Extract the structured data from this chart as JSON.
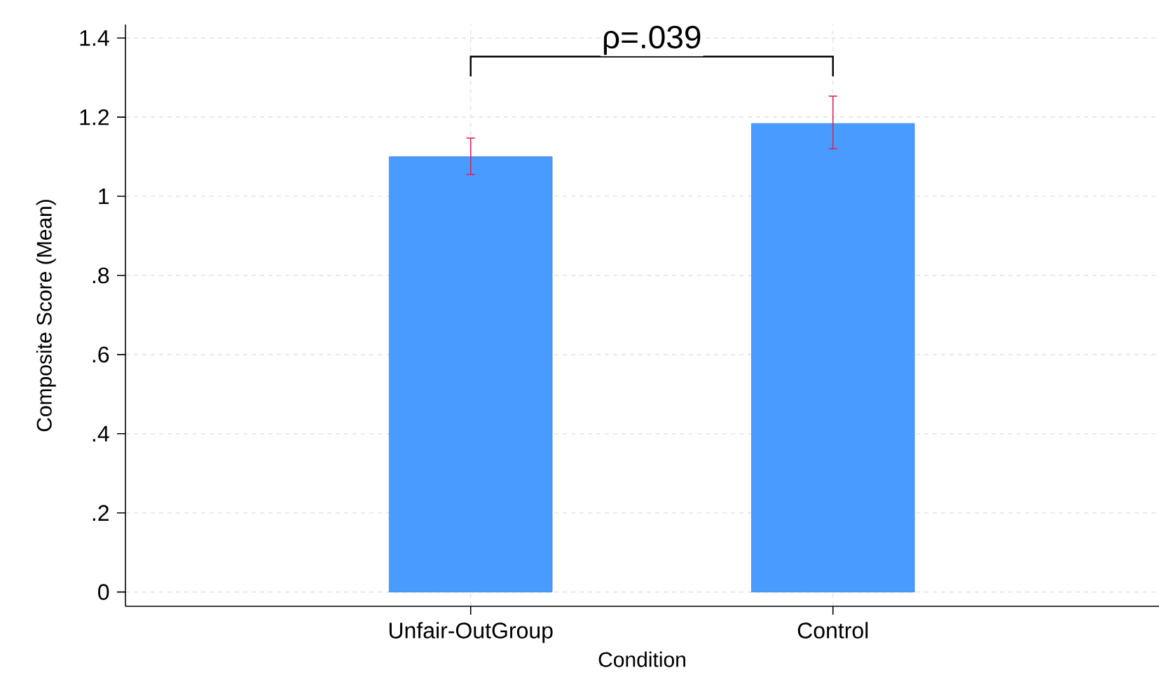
{
  "chart_data": {
    "type": "bar",
    "categories": [
      "Unfair-OutGroup",
      "Control"
    ],
    "values": [
      1.1,
      1.184
    ],
    "errors": [
      [
        1.055,
        1.147
      ],
      [
        1.12,
        1.253
      ]
    ],
    "color": "#4a9bff",
    "xlabel": "Condition",
    "ylabel": "Composite Score (Mean)",
    "annotations": [
      "ρ=.039"
    ],
    "ylim": [
      -0.036,
      1.434
    ],
    "yticks": [
      {
        "value": 0,
        "label": "0"
      },
      {
        "value": 0.2,
        "label": ".2"
      },
      {
        "value": 0.4,
        "label": ".4"
      },
      {
        "value": 0.6,
        "label": ".6"
      },
      {
        "value": 0.8,
        "label": ".8"
      },
      {
        "value": 1,
        "label": "1"
      },
      1.2,
      1.4
    ],
    "grid": true
  }
}
